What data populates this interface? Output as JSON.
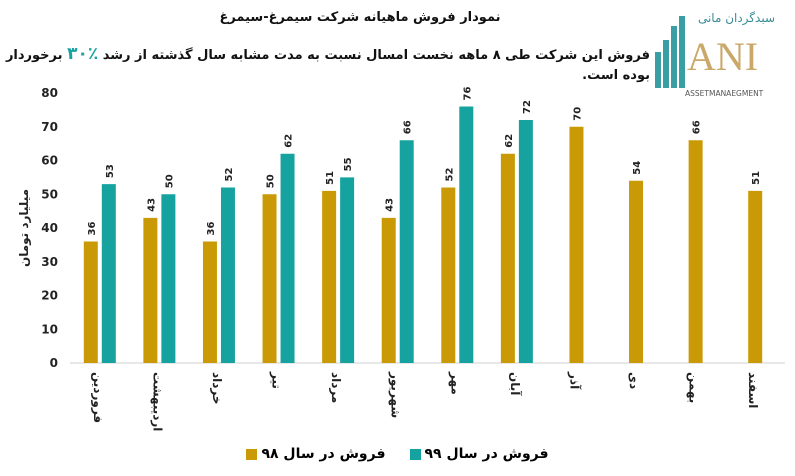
{
  "chart_data": {
    "type": "bar",
    "title": "نمودار فروش ماهیانه شرکت سیمرغ-سیمرغ",
    "subtitle_before": "فروش این شرکت طی ۸ ماهه نخست امسال نسبت به مدت مشابه سال گذشته از رشد",
    "subtitle_pct": "٪۳۰",
    "subtitle_after": "برخوردار بوده است.",
    "ylabel": "میلیارد تومان",
    "ylim": [
      0,
      80
    ],
    "yticks": [
      0,
      10,
      20,
      30,
      40,
      50,
      60,
      70,
      80
    ],
    "categories": [
      "فروردین",
      "اردیبهشت",
      "خرداد",
      "تیر",
      "مرداد",
      "شهریور",
      "مهر",
      "آبان",
      "آذر",
      "دی",
      "بهمن",
      "اسفند"
    ],
    "series": [
      {
        "name": "فروش در سال ۹۸",
        "color": "#c99a06",
        "values": [
          36,
          43,
          36,
          50,
          51,
          43,
          52,
          62,
          70,
          54,
          66,
          51
        ]
      },
      {
        "name": "فروش در سال ۹۹",
        "color": "#16a3a0",
        "values": [
          53,
          50,
          52,
          62,
          55,
          66,
          76,
          72,
          null,
          null,
          null,
          null
        ]
      }
    ],
    "legend": "bottom",
    "grid": false
  },
  "logo": {
    "fa": "سبدگردان مانی",
    "en": "ANI",
    "tag": "ASSETMANAEGMENT"
  }
}
